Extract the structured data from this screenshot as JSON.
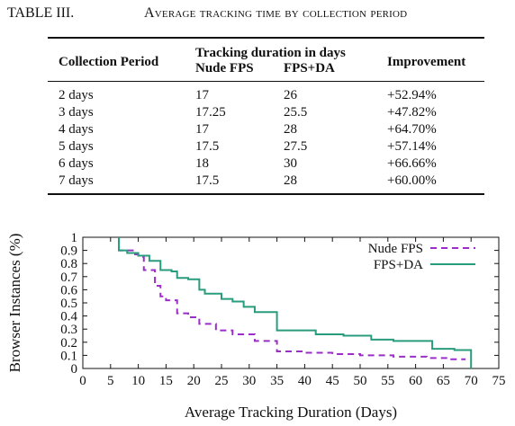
{
  "table": {
    "caption_number": "TABLE III.",
    "caption_title": "Average tracking time by collection period",
    "headers": {
      "period": "Collection Period",
      "group": "Tracking duration in days",
      "nude": "Nude FPS",
      "fpsda": "FPS+DA",
      "improvement": "Improvement"
    },
    "rows": [
      {
        "period": "2 days",
        "nude": "17",
        "fpsda": "26",
        "improvement": "+52.94%"
      },
      {
        "period": "3 days",
        "nude": "17.25",
        "fpsda": "25.5",
        "improvement": "+47.82%"
      },
      {
        "period": "4 days",
        "nude": "17",
        "fpsda": "28",
        "improvement": "+64.70%"
      },
      {
        "period": "5 days",
        "nude": "17.5",
        "fpsda": "27.5",
        "improvement": "+57.14%"
      },
      {
        "period": "6 days",
        "nude": "18",
        "fpsda": "30",
        "improvement": "+66.66%"
      },
      {
        "period": "7 days",
        "nude": "17.5",
        "fpsda": "28",
        "improvement": "+60.00%"
      }
    ]
  },
  "chart_data": {
    "type": "line",
    "title": "",
    "xlabel": "Average Tracking Duration (Days)",
    "ylabel": "Browser Instances (%)",
    "xlim": [
      0,
      75
    ],
    "ylim": [
      0,
      1
    ],
    "xticks": [
      "0",
      "5",
      "10",
      "15",
      "20",
      "25",
      "30",
      "35",
      "40",
      "45",
      "50",
      "55",
      "60",
      "65",
      "70",
      "75"
    ],
    "yticks": [
      "0",
      "0.1",
      "0.2",
      "0.3",
      "0.4",
      "0.5",
      "0.6",
      "0.7",
      "0.8",
      "0.9",
      "1"
    ],
    "grid": false,
    "legend_position": "top-right",
    "series": [
      {
        "name": "Nude FPS",
        "color": "#9b2ec8",
        "style": "dashed-step",
        "points": [
          [
            6.5,
            1.0
          ],
          [
            6.5,
            0.9
          ],
          [
            9,
            0.87
          ],
          [
            10,
            0.85
          ],
          [
            11,
            0.75
          ],
          [
            13,
            0.63
          ],
          [
            14,
            0.55
          ],
          [
            15,
            0.52
          ],
          [
            17,
            0.42
          ],
          [
            19,
            0.39
          ],
          [
            21,
            0.34
          ],
          [
            24,
            0.29
          ],
          [
            27,
            0.26
          ],
          [
            31,
            0.21
          ],
          [
            35,
            0.13
          ],
          [
            40,
            0.12
          ],
          [
            45,
            0.11
          ],
          [
            50,
            0.1
          ],
          [
            56,
            0.09
          ],
          [
            62,
            0.08
          ],
          [
            66,
            0.07
          ],
          [
            69,
            0.07
          ]
        ]
      },
      {
        "name": "FPS+DA",
        "color": "#2a9c7e",
        "style": "solid-step",
        "points": [
          [
            6.5,
            1.0
          ],
          [
            6.5,
            0.9
          ],
          [
            8,
            0.88
          ],
          [
            10,
            0.86
          ],
          [
            12,
            0.82
          ],
          [
            14,
            0.75
          ],
          [
            16,
            0.74
          ],
          [
            17,
            0.69
          ],
          [
            19,
            0.68
          ],
          [
            21,
            0.6
          ],
          [
            22,
            0.57
          ],
          [
            25,
            0.53
          ],
          [
            27,
            0.51
          ],
          [
            29,
            0.47
          ],
          [
            31,
            0.43
          ],
          [
            35,
            0.29
          ],
          [
            42,
            0.26
          ],
          [
            47,
            0.25
          ],
          [
            52,
            0.22
          ],
          [
            56,
            0.21
          ],
          [
            63,
            0.15
          ],
          [
            67,
            0.14
          ],
          [
            70,
            0.14
          ],
          [
            70,
            0.0
          ]
        ]
      }
    ]
  }
}
